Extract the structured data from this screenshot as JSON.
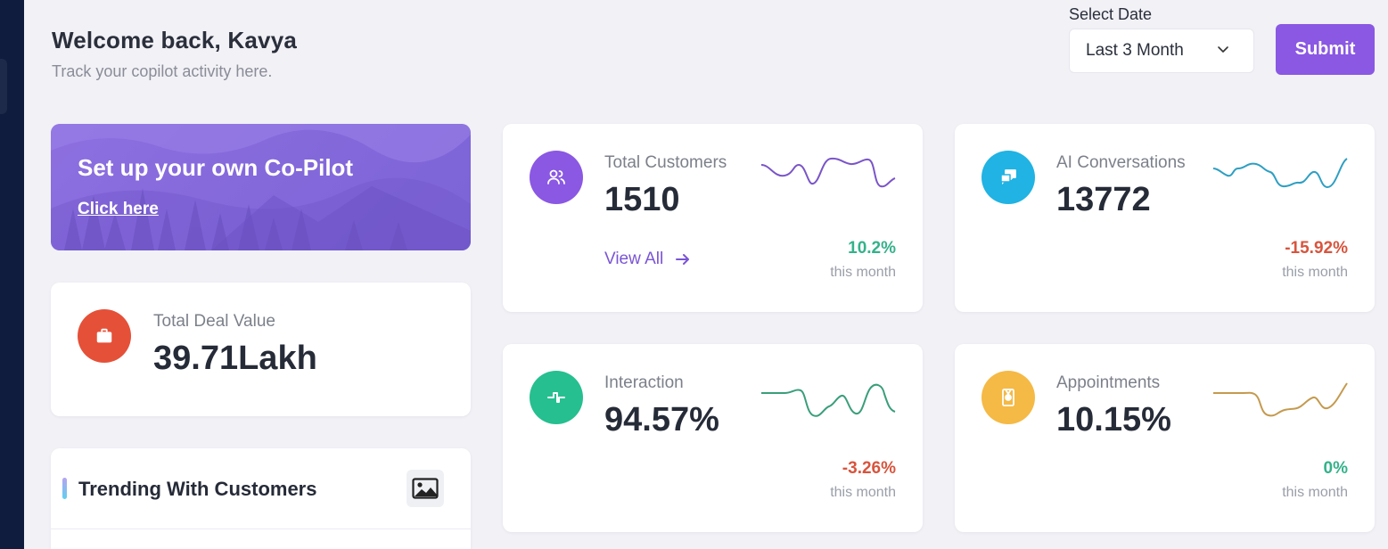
{
  "header": {
    "welcome_title": "Welcome back, Kavya",
    "welcome_subtitle": "Track your copilot activity here."
  },
  "date_filter": {
    "label": "Select Date",
    "selected": "Last 3 Month",
    "submit_label": "Submit"
  },
  "banner": {
    "title": "Set up your own Co-Pilot",
    "link_label": "Click here"
  },
  "deal": {
    "label": "Total Deal Value",
    "value": "39.71Lakh",
    "icon": "briefcase-icon",
    "color": "#e55038"
  },
  "trending": {
    "title": "Trending With Customers",
    "icon": "image-icon"
  },
  "stats": [
    {
      "id": "customers",
      "label": "Total Customers",
      "value": "1510",
      "change": "10.2%",
      "trend": "up",
      "period": "this month",
      "link_label": "View All",
      "icon": "users-icon",
      "color": "#8a58e3",
      "spark_color": "#7a55c8"
    },
    {
      "id": "ai",
      "label": "AI Conversations",
      "value": "13772",
      "change": "-15.92%",
      "trend": "down",
      "period": "this month",
      "icon": "chat-icon",
      "color": "#20b3e3",
      "spark_color": "#2e9fc2"
    },
    {
      "id": "interaction",
      "label": "Interaction",
      "value": "94.57%",
      "change": "-3.26%",
      "trend": "down",
      "period": "this month",
      "icon": "pulse-icon",
      "color": "#26bf8f",
      "spark_color": "#3a9e7a"
    },
    {
      "id": "appointments",
      "label": "Appointments",
      "value": "10.15%",
      "change": "0%",
      "trend": "up",
      "period": "this month",
      "icon": "award-icon",
      "color": "#f5b945",
      "spark_color": "#c49a4e"
    }
  ]
}
